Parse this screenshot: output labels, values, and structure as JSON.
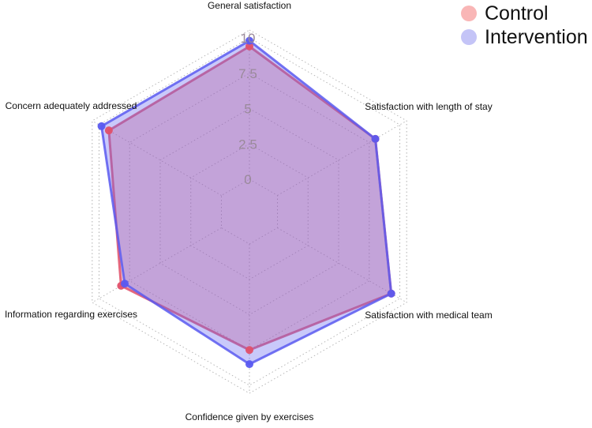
{
  "chart_data": {
    "type": "radar",
    "title": "",
    "axes": [
      "General satisfaction",
      "Satisfaction with length of stay",
      "Satisfaction with medical team",
      "Confidence given by exercises",
      "Information regarding exercises",
      "Concern adequately addressed"
    ],
    "radial_range": [
      0,
      10
    ],
    "radial_ticks": [
      "0",
      "2.5",
      "5",
      "7.5",
      "10"
    ],
    "grid": true,
    "legend_position": "top-right",
    "series": [
      {
        "name": "Control",
        "color": "#f28a8a",
        "line_color": "#e0506a",
        "fill": "rgba(230, 90, 110, 0.35)",
        "values": [
          9.4,
          8.0,
          9.3,
          7.5,
          8.2,
          9.2
        ]
      },
      {
        "name": "Intervention",
        "color": "#a8a8f5",
        "line_color": "#5a5af0",
        "fill": "rgba(100, 100, 240, 0.35)",
        "values": [
          9.8,
          8.0,
          9.3,
          8.5,
          7.9,
          9.8
        ]
      }
    ]
  }
}
